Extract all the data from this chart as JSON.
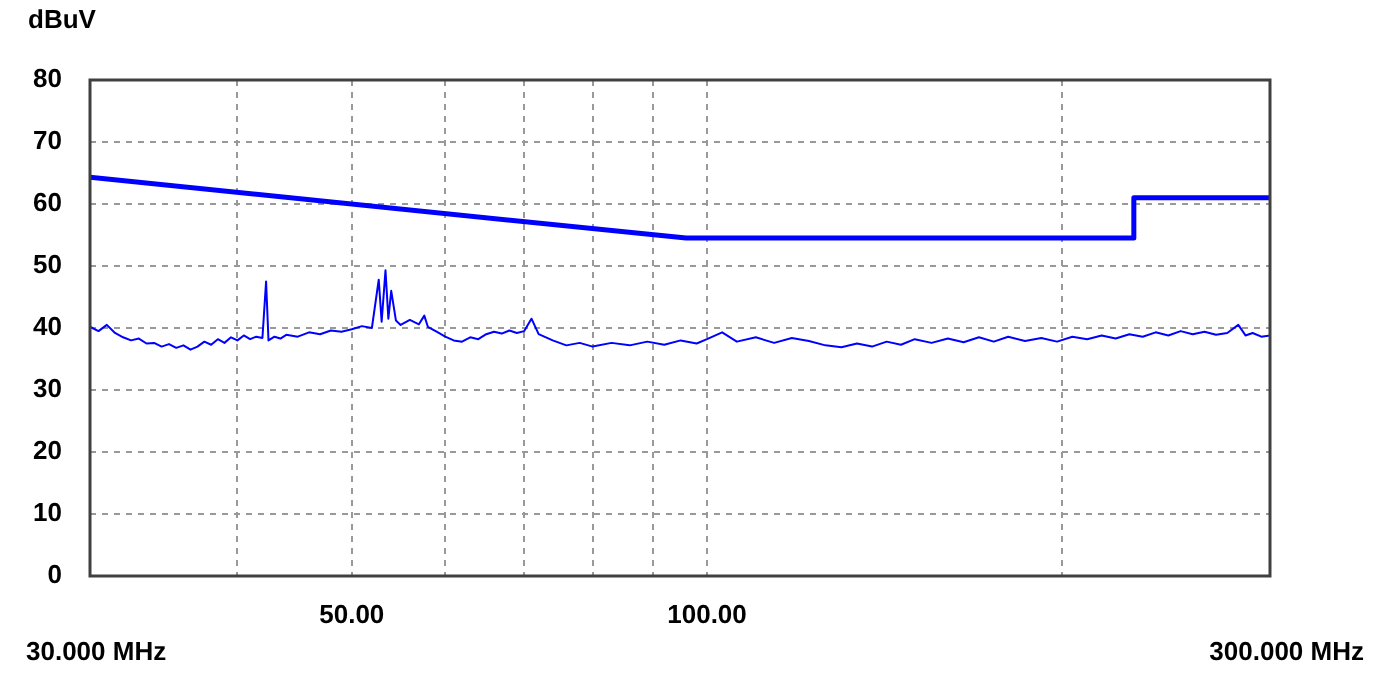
{
  "chart_data": {
    "type": "line",
    "ylabel": "dBuV",
    "log": "x",
    "xlim": [
      30,
      300
    ],
    "ylim": [
      0,
      80
    ],
    "annotations": [
      "30.000 MHz",
      "300.000 MHz"
    ],
    "xticks": [
      {
        "value": 30,
        "label": null
      },
      {
        "value": 40,
        "label": null
      },
      {
        "value": 50,
        "label": "50.00"
      },
      {
        "value": 60,
        "label": null
      },
      {
        "value": 70,
        "label": null
      },
      {
        "value": 80,
        "label": null
      },
      {
        "value": 90,
        "label": null
      },
      {
        "value": 100,
        "label": "100.00"
      },
      {
        "value": 200,
        "label": null
      },
      {
        "value": 300,
        "label": null
      }
    ],
    "yticks": [
      0,
      10,
      20,
      30,
      40,
      50,
      60,
      70,
      80
    ],
    "grid": true,
    "marker": "none",
    "line_style": "solid",
    "series": [
      {
        "color": "#0000ff",
        "x": [
          30,
          30.5,
          31,
          31.5,
          32,
          32.5,
          33,
          33.5,
          34,
          34.5,
          35,
          35.5,
          36,
          36.5,
          37,
          37.5,
          38,
          38.5,
          39,
          39.5,
          40,
          40.5,
          41,
          41.5,
          42,
          42.3,
          42.5,
          43,
          43.5,
          44,
          45,
          46,
          47,
          48,
          49,
          50,
          51,
          52,
          52.7,
          53,
          53.4,
          53.7,
          54,
          54.5,
          55,
          56,
          57,
          57.6,
          58,
          59,
          60,
          61,
          62,
          63,
          64,
          65,
          66,
          67,
          68,
          69,
          70,
          71,
          72,
          74,
          76,
          78,
          80,
          83,
          86,
          89,
          92,
          95,
          98,
          100,
          103,
          106,
          110,
          114,
          118,
          122,
          126,
          130,
          134,
          138,
          142,
          146,
          150,
          155,
          160,
          165,
          170,
          175,
          180,
          186,
          192,
          198,
          204,
          210,
          216,
          222,
          228,
          234,
          240,
          246,
          252,
          258,
          264,
          270,
          276,
          282,
          286,
          290,
          295,
          300
        ],
        "values": [
          40.2,
          39.5,
          40.5,
          39.2,
          38.5,
          38.0,
          38.3,
          37.5,
          37.6,
          37.0,
          37.4,
          36.8,
          37.2,
          36.5,
          37.0,
          37.8,
          37.3,
          38.2,
          37.6,
          38.5,
          38.0,
          38.8,
          38.2,
          38.6,
          38.4,
          47.5,
          38.0,
          38.6,
          38.3,
          38.9,
          38.6,
          39.3,
          39.0,
          39.6,
          39.4,
          39.8,
          40.3,
          40.0,
          47.8,
          41.0,
          49.3,
          41.5,
          46.0,
          41.2,
          40.5,
          41.3,
          40.6,
          42.0,
          40.2,
          39.4,
          38.6,
          38.0,
          37.8,
          38.5,
          38.2,
          39.0,
          39.4,
          39.1,
          39.6,
          39.2,
          39.5,
          41.5,
          39.0,
          38.0,
          37.2,
          37.6,
          37.0,
          37.6,
          37.2,
          37.8,
          37.3,
          38.0,
          37.5,
          38.2,
          39.3,
          37.8,
          38.5,
          37.6,
          38.4,
          37.9,
          37.2,
          36.9,
          37.5,
          37.0,
          37.8,
          37.3,
          38.2,
          37.6,
          38.3,
          37.7,
          38.5,
          37.8,
          38.6,
          37.9,
          38.4,
          37.8,
          38.6,
          38.2,
          38.8,
          38.3,
          39.0,
          38.6,
          39.3,
          38.8,
          39.5,
          39.0,
          39.4,
          38.9,
          39.2,
          40.5,
          38.8,
          39.2,
          38.6,
          38.8
        ]
      },
      {
        "color": "#0000ff",
        "x": [
          30,
          96,
          230,
          230,
          300
        ],
        "values": [
          64.3,
          54.5,
          54.5,
          61,
          61
        ]
      }
    ]
  }
}
